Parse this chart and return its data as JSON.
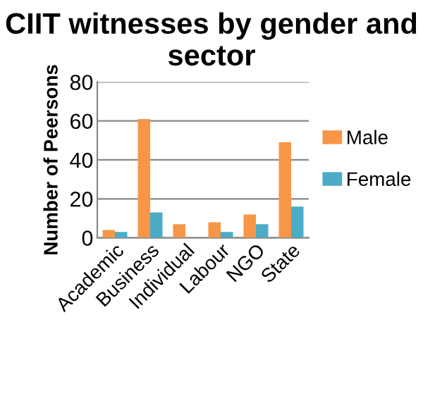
{
  "chart_data": {
    "type": "bar",
    "title": "CIIT witnesses by gender and sector",
    "ylabel": "Number of Peersons",
    "categories": [
      "Academic",
      "Business",
      "Individual",
      "Labour",
      "NGO",
      "State"
    ],
    "series": [
      {
        "name": "Male",
        "color": "#f79646",
        "values": [
          4,
          61,
          7,
          8,
          12,
          49
        ]
      },
      {
        "name": "Female",
        "color": "#4bacc6",
        "values": [
          3,
          13,
          0,
          3,
          7,
          16
        ]
      }
    ],
    "ylim": [
      0,
      80
    ],
    "yticks": [
      0,
      20,
      40,
      60,
      80
    ],
    "grid": "y",
    "legend": "right"
  }
}
